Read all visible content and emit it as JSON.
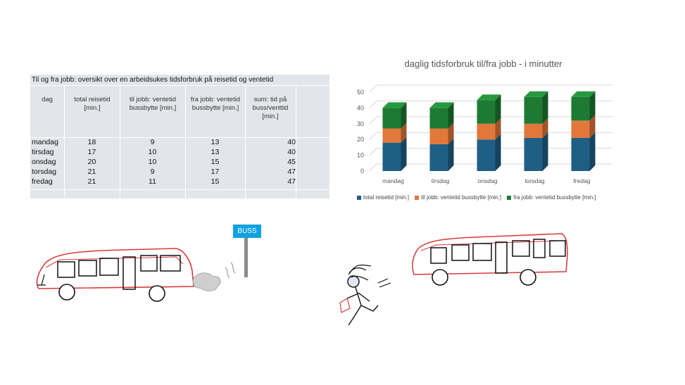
{
  "table": {
    "title": "Til og fra jobb: oversikt over en arbeidsukes  tidsforbruk på reisetid og ventetid",
    "headers": {
      "day": "dag",
      "total": [
        "total reisetid",
        "[min.]"
      ],
      "to": [
        "til jobb: ventetid",
        "bussbytte [min.]"
      ],
      "from": [
        "fra jobb: ventetid",
        "bussbytte [min.]"
      ],
      "sum": [
        "sum: tid på",
        "buss/venttid",
        "[min.]"
      ]
    },
    "rows": [
      {
        "day": "mandag",
        "total": "18",
        "to": "9",
        "from": "13",
        "sum": "40"
      },
      {
        "day": "tirsdag",
        "total": "17",
        "to": "10",
        "from": "13",
        "sum": "40"
      },
      {
        "day": "onsdag",
        "total": "20",
        "to": "10",
        "from": "15",
        "sum": "45"
      },
      {
        "day": "torsdag",
        "total": "21",
        "to": "9",
        "from": "17",
        "sum": "47"
      },
      {
        "day": "fredag",
        "total": "21",
        "to": "11",
        "from": "15",
        "sum": "47"
      }
    ]
  },
  "chart_data": {
    "type": "bar",
    "stacked": true,
    "style": "3d-column",
    "title": "daglig tidsforbruk til/fra jobb  - i minutter",
    "categories": [
      "mandag",
      "tirsdag",
      "onsdag",
      "torsdag",
      "fredag"
    ],
    "series": [
      {
        "name": "total reisetid [min.]",
        "values": [
          18,
          17,
          20,
          21,
          21
        ],
        "color": "#1f5f85"
      },
      {
        "name": "til jobb: ventetid bussbytte [min.]",
        "values": [
          9,
          10,
          10,
          9,
          11
        ],
        "color": "#e2773a"
      },
      {
        "name": "fra jobb: ventetid bussbytte [min.]",
        "values": [
          13,
          13,
          15,
          17,
          15
        ],
        "color": "#1e7a33"
      }
    ],
    "yticks": [
      "0",
      "10",
      "20",
      "30",
      "40",
      "50"
    ],
    "ylim": [
      0,
      50
    ],
    "grid": true,
    "legend_position": "bottom"
  },
  "illustration": {
    "sign_label": "BUSS"
  }
}
